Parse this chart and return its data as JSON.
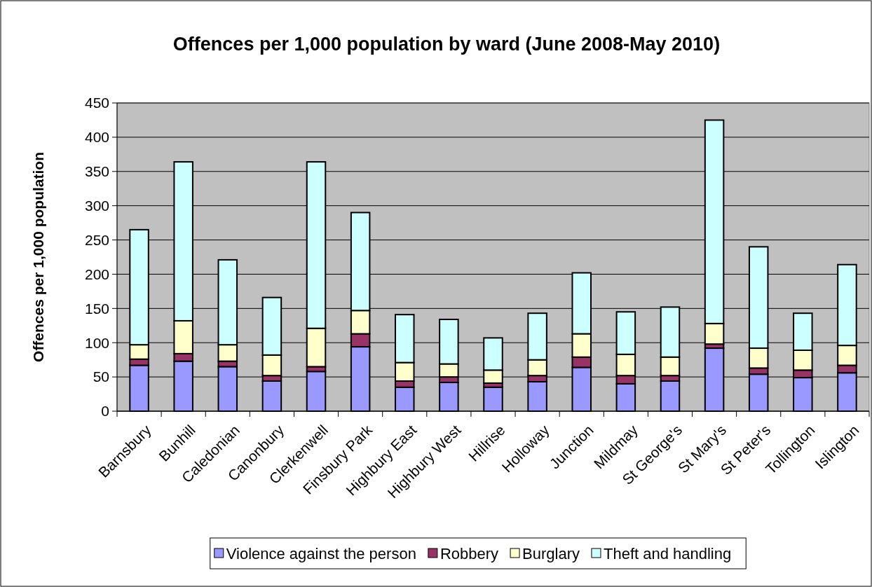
{
  "chart_data": {
    "type": "bar",
    "title": "Offences per 1,000 population by ward (June 2008-May 2010)",
    "ylabel": "Offences per 1,000 population",
    "categories": [
      "Barnsbury",
      "Bunhill",
      "Caledonian",
      "Canonbury",
      "Clerkenwell",
      "Finsbury Park",
      "Highbury East",
      "Highbury West",
      "Hillrise",
      "Holloway",
      "Junction",
      "Mildmay",
      "St George's",
      "St Mary's",
      "St Peter's",
      "Tollington",
      "Islington"
    ],
    "series": [
      {
        "name": "Violence against the person",
        "color": "#9999ff",
        "values": [
          67,
          73,
          65,
          44,
          58,
          94,
          35,
          42,
          35,
          43,
          64,
          40,
          44,
          92,
          54,
          49,
          56
        ]
      },
      {
        "name": "Robbery",
        "color": "#993366",
        "values": [
          9,
          11,
          8,
          8,
          7,
          19,
          9,
          8,
          6,
          9,
          15,
          12,
          8,
          6,
          9,
          11,
          11
        ]
      },
      {
        "name": "Burglary",
        "color": "#ffffcc",
        "values": [
          21,
          48,
          24,
          30,
          56,
          34,
          27,
          19,
          19,
          23,
          34,
          31,
          27,
          30,
          29,
          29,
          29
        ]
      },
      {
        "name": "Theft and handling",
        "color": "#ccffff",
        "values": [
          168,
          232,
          124,
          84,
          243,
          143,
          70,
          65,
          47,
          68,
          89,
          62,
          73,
          297,
          148,
          54,
          118
        ]
      }
    ],
    "stacked": true,
    "ylim": [
      0,
      450
    ],
    "yticks": [
      0,
      50,
      100,
      150,
      200,
      250,
      300,
      350,
      400,
      450
    ],
    "grid": "y",
    "legend": "bottom"
  }
}
